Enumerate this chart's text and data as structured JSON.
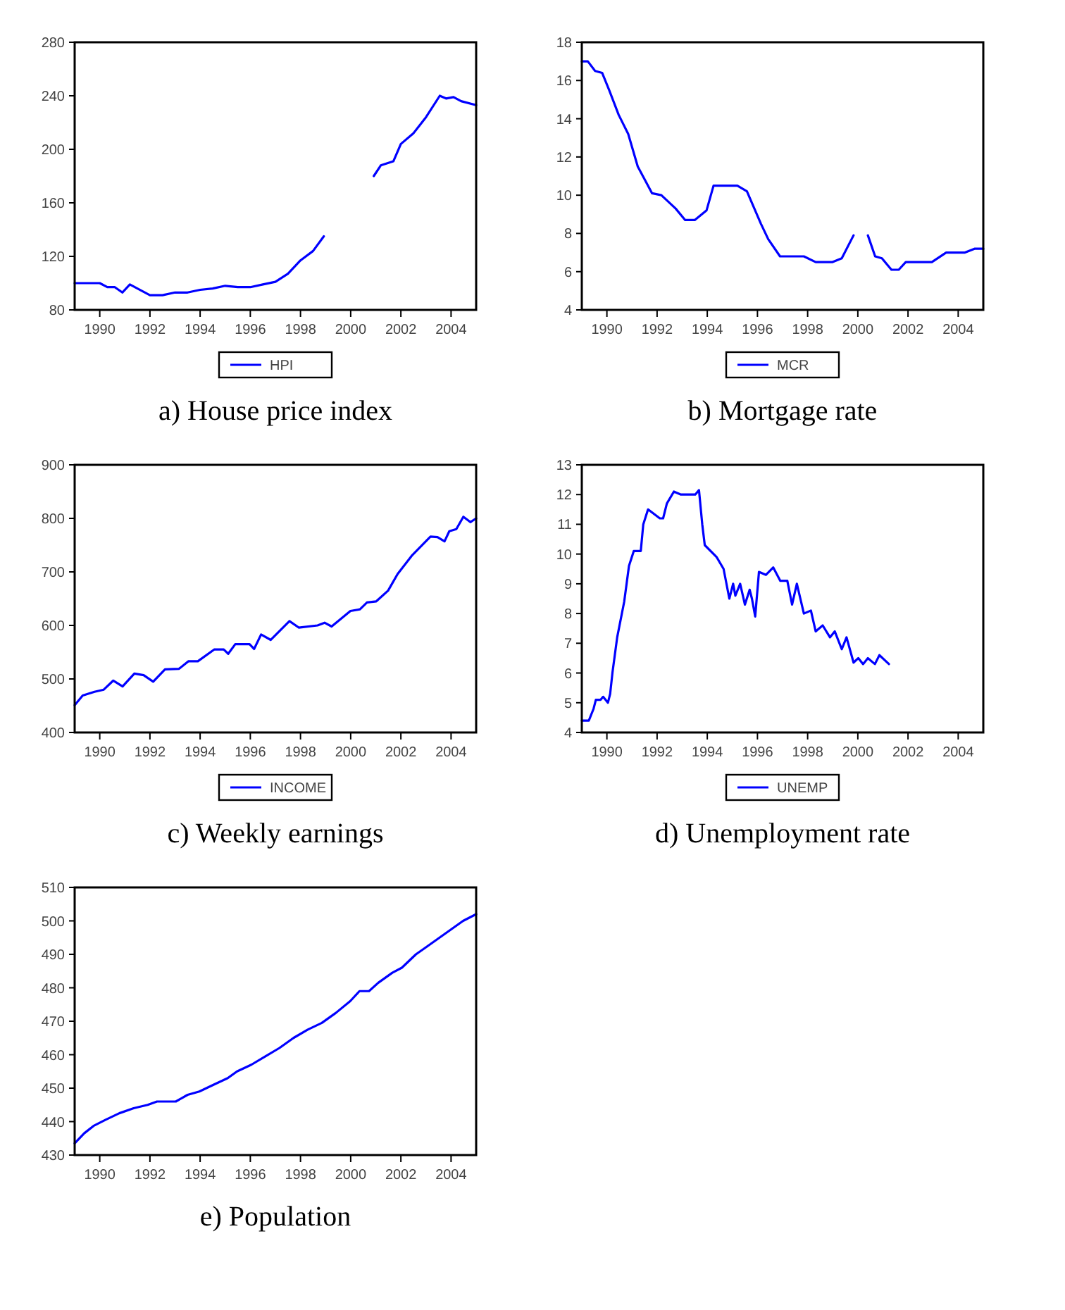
{
  "chart_data": [
    {
      "type": "line",
      "title": "a) House price index",
      "x": [
        1989.0,
        1990.0,
        1990.3,
        1990.6,
        1990.9,
        1991.2,
        1991.5,
        1992.0,
        1992.5,
        1993.0,
        1993.5,
        1994.0,
        1994.5,
        1995.0,
        1995.5,
        1996.0,
        1996.5,
        1997.0,
        1997.5,
        1998.0,
        1998.5,
        1998.93,
        1999.9,
        2000.92,
        2001.2,
        2001.7,
        2002.0,
        2002.5,
        2003.0,
        2003.55,
        2003.8,
        2004.1,
        2004.4,
        2005.0
      ],
      "series": [
        {
          "name": "HPI",
          "color": "#0000ff",
          "values": [
            100,
            100,
            97,
            97,
            93,
            99,
            96,
            91,
            91,
            93,
            93,
            95,
            96,
            98,
            97,
            97,
            99,
            101,
            107,
            117,
            124,
            135,
            null,
            180,
            188,
            191,
            204,
            212,
            224,
            240,
            238,
            239,
            236,
            233
          ]
        }
      ],
      "xlim": [
        1989,
        2005
      ],
      "xticks": [
        1990,
        1992,
        1994,
        1996,
        1998,
        2000,
        2002,
        2004
      ],
      "ylim": [
        80,
        280
      ],
      "yticks": [
        80,
        120,
        160,
        200,
        240,
        280
      ],
      "legend": "bottom"
    },
    {
      "type": "line",
      "title": "b) Mortgage rate",
      "x": [
        1989.0,
        1989.24,
        1989.53,
        1989.81,
        1990.09,
        1990.47,
        1990.85,
        1991.23,
        1991.8,
        1992.17,
        1992.74,
        1993.12,
        1993.5,
        1993.97,
        1994.25,
        1995.2,
        1995.58,
        1996.14,
        1996.43,
        1996.9,
        1997.85,
        1998.32,
        1998.98,
        1999.36,
        1999.83,
        2000.1,
        2000.4,
        2000.69,
        2000.96,
        2001.34,
        2001.63,
        2001.91,
        2002.95,
        2003.52,
        2004.27,
        2004.65,
        2005.0
      ],
      "series": [
        {
          "name": "MCR",
          "color": "#0000ff",
          "values": [
            17.0,
            17.0,
            16.5,
            16.4,
            15.5,
            14.2,
            13.2,
            11.5,
            10.1,
            10.0,
            9.3,
            8.7,
            8.7,
            9.2,
            10.5,
            10.5,
            10.2,
            8.5,
            7.7,
            6.8,
            6.8,
            6.5,
            6.5,
            6.7,
            7.9,
            null,
            7.9,
            6.8,
            6.7,
            6.1,
            6.1,
            6.5,
            6.5,
            7.0,
            7.0,
            7.2,
            7.2
          ]
        }
      ],
      "xlim": [
        1989,
        2005
      ],
      "xticks": [
        1990,
        1992,
        1994,
        1996,
        1998,
        2000,
        2002,
        2004
      ],
      "ylim": [
        4,
        18
      ],
      "yticks": [
        4,
        6,
        8,
        10,
        12,
        14,
        16,
        18
      ],
      "legend": "bottom"
    },
    {
      "type": "line",
      "title": "c) Weekly earnings",
      "x": [
        1989.0,
        1989.32,
        1989.79,
        1990.16,
        1990.54,
        1990.91,
        1991.38,
        1991.75,
        1992.13,
        1992.6,
        1993.16,
        1993.53,
        1993.91,
        1994.56,
        1994.94,
        1995.12,
        1995.4,
        1995.97,
        1996.15,
        1996.43,
        1996.81,
        1997.56,
        1997.93,
        1998.68,
        1998.96,
        1999.24,
        1999.99,
        2000.37,
        2000.65,
        2001.02,
        2001.49,
        2001.87,
        2002.43,
        2003.18,
        2003.46,
        2003.74,
        2003.93,
        2004.21,
        2004.49,
        2004.77,
        2005.0
      ],
      "series": [
        {
          "name": "INCOME",
          "color": "#0000ff",
          "values": [
            451,
            469,
            476,
            480,
            497,
            486,
            510,
            507,
            495,
            518,
            519,
            533,
            533,
            555,
            555,
            547,
            565,
            565,
            556,
            583,
            573,
            608,
            596,
            600,
            605,
            598,
            627,
            630,
            643,
            645,
            665,
            696,
            730,
            766,
            765,
            757,
            776,
            780,
            803,
            793,
            800
          ]
        }
      ],
      "xlim": [
        1989,
        2005
      ],
      "xticks": [
        1990,
        1992,
        1994,
        1996,
        1998,
        2000,
        2002,
        2004
      ],
      "ylim": [
        400,
        900
      ],
      "yticks": [
        400,
        500,
        600,
        700,
        800,
        900
      ],
      "legend": "bottom"
    },
    {
      "type": "line",
      "title": "d) Unemployment rate",
      "x": [
        1989.0,
        1989.28,
        1989.47,
        1989.56,
        1989.75,
        1989.85,
        1990.04,
        1990.13,
        1990.22,
        1990.41,
        1990.69,
        1990.88,
        1991.07,
        1991.35,
        1991.45,
        1991.64,
        1992.11,
        1992.24,
        1992.39,
        1992.67,
        1992.95,
        1993.52,
        1993.67,
        1993.8,
        1993.9,
        1994.37,
        1994.65,
        1994.88,
        1995.03,
        1995.12,
        1995.31,
        1995.5,
        1995.69,
        1995.78,
        1995.91,
        1996.06,
        1996.34,
        1996.63,
        1996.91,
        1997.19,
        1997.38,
        1997.57,
        1997.85,
        1998.13,
        1998.32,
        1998.6,
        1998.89,
        1999.08,
        1999.36,
        1999.55,
        1999.83,
        2000.02,
        2000.21,
        2000.4,
        2000.68,
        2000.86,
        2001.24
      ],
      "series": [
        {
          "name": "UNEMP",
          "color": "#0000ff",
          "values": [
            4.4,
            4.4,
            4.8,
            5.1,
            5.1,
            5.2,
            5.0,
            5.3,
            6.0,
            7.2,
            8.4,
            9.6,
            10.1,
            10.1,
            11.0,
            11.5,
            11.2,
            11.2,
            11.7,
            12.1,
            12.0,
            12.0,
            12.15,
            11.0,
            10.3,
            9.9,
            9.5,
            8.5,
            9.0,
            8.6,
            9.0,
            8.3,
            8.8,
            8.5,
            7.9,
            9.4,
            9.3,
            9.55,
            9.1,
            9.1,
            8.3,
            9.0,
            8.0,
            8.1,
            7.4,
            7.6,
            7.2,
            7.4,
            6.8,
            7.2,
            6.35,
            6.5,
            6.3,
            6.5,
            6.3,
            6.6,
            6.3
          ]
        }
      ],
      "xlim": [
        1989,
        2005
      ],
      "xticks": [
        1990,
        1992,
        1994,
        1996,
        1998,
        2000,
        2002,
        2004
      ],
      "ylim": [
        4,
        13
      ],
      "yticks": [
        4,
        5,
        6,
        7,
        8,
        9,
        10,
        11,
        12,
        13
      ],
      "legend": "bottom"
    },
    {
      "type": "line",
      "title": "e) Population",
      "x": [
        1989.0,
        1989.38,
        1989.75,
        1990.22,
        1990.78,
        1991.35,
        1991.91,
        1992.28,
        1993.03,
        1993.5,
        1993.97,
        1994.53,
        1995.1,
        1995.47,
        1996.04,
        1996.6,
        1997.16,
        1997.72,
        1998.29,
        1998.85,
        1999.41,
        1999.98,
        2000.35,
        2000.73,
        2001.1,
        2001.66,
        2002.04,
        2002.6,
        2002.98,
        2003.73,
        2004.48,
        2005.0
      ],
      "series": [
        {
          "color": "#0000ff",
          "values": [
            433.5,
            436.5,
            438.7,
            440.5,
            442.5,
            444,
            445,
            446,
            446,
            448,
            449,
            451,
            453,
            455,
            457,
            459.5,
            462,
            465,
            467.5,
            469.5,
            472.5,
            476,
            479,
            479,
            481.5,
            484.5,
            486,
            490,
            492,
            496,
            500,
            502
          ]
        }
      ],
      "xlim": [
        1989,
        2005
      ],
      "xticks": [
        1990,
        1992,
        1994,
        1996,
        1998,
        2000,
        2002,
        2004
      ],
      "ylim": [
        430,
        510
      ],
      "yticks": [
        430,
        440,
        450,
        460,
        470,
        480,
        490,
        500,
        510
      ]
    }
  ]
}
